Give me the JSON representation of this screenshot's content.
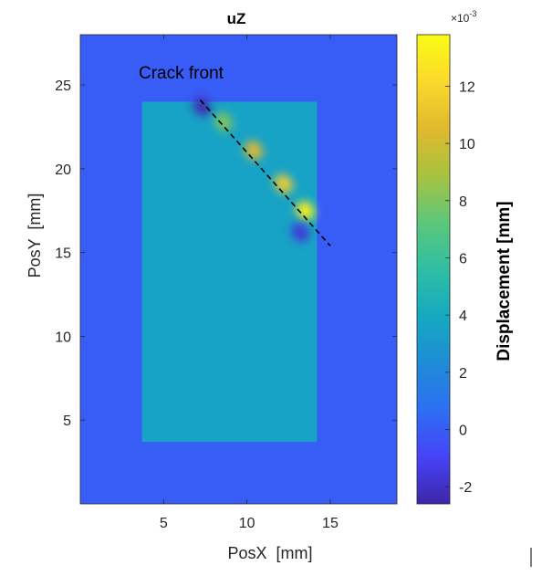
{
  "chart_data": {
    "type": "heatmap",
    "title": "uZ",
    "xlabel": "PosX  [mm]",
    "ylabel": "PosY  [mm]",
    "xlim": [
      0,
      19
    ],
    "ylim": [
      0,
      28
    ],
    "xticks": [
      5,
      10,
      15
    ],
    "yticks": [
      5,
      10,
      15,
      20,
      25
    ],
    "grid": false,
    "background_value": 0,
    "specimen_region": {
      "x": [
        3.7,
        14.2
      ],
      "y": [
        3.7,
        24.0
      ]
    },
    "crack_front_line": {
      "x": [
        7.2,
        15.0
      ],
      "y": [
        24.1,
        15.4
      ]
    },
    "annotation": "Crack front",
    "colorbar": {
      "label": "Displacement [mm]",
      "exponent_label": "×10",
      "exponent_value": "-3",
      "min": -2.6,
      "max": 13.8,
      "ticks": [
        "-2",
        "0",
        "2",
        "4",
        "6",
        "8",
        "10",
        "12"
      ],
      "colormap": [
        "#3e26a8",
        "#4743f8",
        "#2d6ff4",
        "#1e8cd6",
        "#15a9c1",
        "#2fbea3",
        "#5cc77a",
        "#a8c240",
        "#e1b92f",
        "#fbd92b",
        "#f9fb15"
      ]
    },
    "hot_spots": [
      {
        "x": 7.3,
        "y": 23.7,
        "value": -2.4
      },
      {
        "x": 8.6,
        "y": 22.8,
        "value": 8.0
      },
      {
        "x": 10.4,
        "y": 21.1,
        "value": 10.5
      },
      {
        "x": 12.2,
        "y": 19.1,
        "value": 11.5
      },
      {
        "x": 13.5,
        "y": 17.5,
        "value": 13.2
      },
      {
        "x": 13.2,
        "y": 16.2,
        "value": -1.6
      }
    ]
  }
}
